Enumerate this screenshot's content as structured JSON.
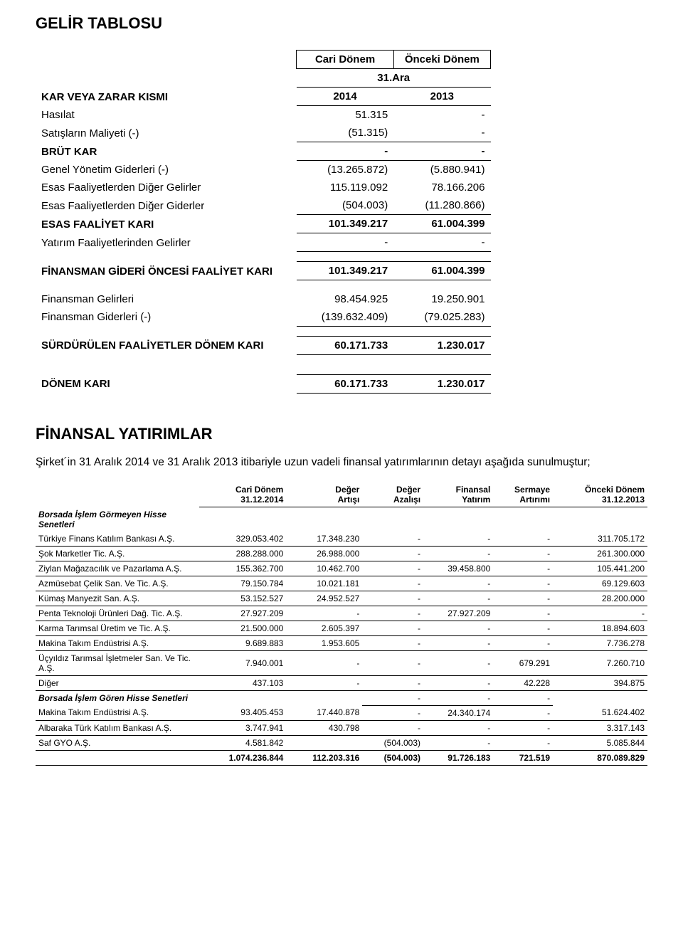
{
  "title1": "GELİR TABLOSU",
  "income": {
    "col_headers": {
      "c1": "Cari Dönem",
      "c2": "Önceki Dönem"
    },
    "subheader": "31.Ara",
    "section_label": "KAR VEYA ZARAR KISMI",
    "years": {
      "c1": "2014",
      "c2": "2013"
    },
    "rows": [
      {
        "label": "Hasılat",
        "c1": "51.315",
        "c2": "-"
      },
      {
        "label": "Satışların Maliyeti (-)",
        "c1": "(51.315)",
        "c2": "-"
      }
    ],
    "brut": {
      "label": "BRÜT KAR",
      "c1": "-",
      "c2": "-"
    },
    "rows2": [
      {
        "label": "Genel Yönetim Giderleri (-)",
        "c1": "(13.265.872)",
        "c2": "(5.880.941)"
      },
      {
        "label": "Esas Faaliyetlerden Diğer Gelirler",
        "c1": "115.119.092",
        "c2": "78.166.206"
      },
      {
        "label": "Esas Faaliyetlerden Diğer Giderler",
        "c1": "(504.003)",
        "c2": "(11.280.866)"
      }
    ],
    "esas": {
      "label": "ESAS FAALİYET KARI",
      "c1": "101.349.217",
      "c2": "61.004.399"
    },
    "rows3": [
      {
        "label": "Yatırım Faaliyetlerinden Gelirler",
        "c1": "-",
        "c2": "-"
      }
    ],
    "fgo": {
      "label": "FİNANSMAN GİDERİ ÖNCESİ FAALİYET KARI",
      "c1": "101.349.217",
      "c2": "61.004.399"
    },
    "rows4": [
      {
        "label": "Finansman Gelirleri",
        "c1": "98.454.925",
        "c2": "19.250.901"
      },
      {
        "label": "Finansman Giderleri (-)",
        "c1": "(139.632.409)",
        "c2": "(79.025.283)"
      }
    ],
    "surd": {
      "label": "SÜRDÜRÜLEN FAALİYETLER DÖNEM KARI",
      "c1": "60.171.733",
      "c2": "1.230.017"
    },
    "donem": {
      "label": "DÖNEM KARI",
      "c1": "60.171.733",
      "c2": "1.230.017"
    }
  },
  "title2": "FİNANSAL YATIRIMLAR",
  "intro": "Şirket´in 31 Aralık 2014 ve 31 Aralık 2013 itibariyle uzun vadeli finansal yatırımlarının detayı aşağıda sunulmuştur;",
  "inv": {
    "headers": {
      "c1a": "Cari Dönem",
      "c1b": "31.12.2014",
      "c2a": "Değer",
      "c2b": "Artışı",
      "c3a": "Değer",
      "c3b": "Azalışı",
      "c4a": "Finansal",
      "c4b": "Yatırım",
      "c5a": "Sermaye",
      "c5b": "Artırımı",
      "c6a": "Önceki Dönem",
      "c6b": "31.12.2013"
    },
    "section1": "Borsada İşlem Görmeyen Hisse Senetleri",
    "rows1": [
      {
        "name": "Türkiye Finans Katılım Bankası A.Ş.",
        "c1": "329.053.402",
        "c2": "17.348.230",
        "c3": "-",
        "c4": "-",
        "c5": "-",
        "c6": "311.705.172"
      },
      {
        "name": "Şok Marketler Tic. A.Ş.",
        "c1": "288.288.000",
        "c2": "26.988.000",
        "c3": "-",
        "c4": "-",
        "c5": "-",
        "c6": "261.300.000"
      },
      {
        "name": "Ziylan Mağazacılık ve Pazarlama A.Ş.",
        "c1": "155.362.700",
        "c2": "10.462.700",
        "c3": "-",
        "c4": "39.458.800",
        "c5": "-",
        "c6": "105.441.200"
      },
      {
        "name": "Azmüsebat Çelik San. Ve Tic. A.Ş.",
        "c1": "79.150.784",
        "c2": "10.021.181",
        "c3": "-",
        "c4": "-",
        "c5": "-",
        "c6": "69.129.603"
      },
      {
        "name": "Kümaş Manyezit San. A.Ş.",
        "c1": "53.152.527",
        "c2": "24.952.527",
        "c3": "-",
        "c4": "-",
        "c5": "-",
        "c6": "28.200.000"
      },
      {
        "name": "Penta Teknoloji Ürünleri Dağ. Tic. A.Ş.",
        "c1": "27.927.209",
        "c2": "-",
        "c3": "-",
        "c4": "27.927.209",
        "c5": "-",
        "c6": "-"
      },
      {
        "name": "Karma Tarımsal Üretim ve Tic. A.Ş.",
        "c1": "21.500.000",
        "c2": "2.605.397",
        "c3": "-",
        "c4": "-",
        "c5": "-",
        "c6": "18.894.603"
      },
      {
        "name": "Makina Takım Endüstrisi A.Ş.",
        "c1": "9.689.883",
        "c2": "1.953.605",
        "c3": "-",
        "c4": "-",
        "c5": "-",
        "c6": "7.736.278"
      },
      {
        "name": "Üçyıldız Tarımsal İşletmeler San. Ve Tic. A.Ş.",
        "c1": "7.940.001",
        "c2": "-",
        "c3": "-",
        "c4": "-",
        "c5": "679.291",
        "c6": "7.260.710"
      },
      {
        "name": "Diğer",
        "c1": "437.103",
        "c2": "-",
        "c3": "-",
        "c4": "-",
        "c5": "42.228",
        "c6": "394.875"
      }
    ],
    "section2": "Borsada İşlem Gören Hisse Senetleri",
    "section2_c3": "-",
    "section2_c4": "-",
    "section2_c5": "-",
    "rows2": [
      {
        "name": "Makina Takım Endüstrisi A.Ş.",
        "c1": "93.405.453",
        "c2": "17.440.878",
        "c3": "-",
        "c4": "24.340.174",
        "c5": "-",
        "c6": "51.624.402"
      },
      {
        "name": "Albaraka Türk Katılım Bankası A.Ş.",
        "c1": "3.747.941",
        "c2": "430.798",
        "c3": "-",
        "c4": "-",
        "c5": "-",
        "c6": "3.317.143"
      },
      {
        "name": "Saf GYO A.Ş.",
        "c1": "4.581.842",
        "c2": "",
        "c3": "(504.003)",
        "c4": "-",
        "c5": "-",
        "c6": "5.085.844"
      }
    ],
    "total": {
      "c1": "1.074.236.844",
      "c2": "112.203.316",
      "c3": "(504.003)",
      "c4": "91.726.183",
      "c5": "721.519",
      "c6": "870.089.829"
    }
  },
  "style": {
    "font_family": "Arial",
    "text_color": "#000000",
    "background": "#ffffff",
    "border_color": "#000000",
    "h1_fontsize": 22,
    "body_fontsize": 14,
    "inv_fontsize": 12
  }
}
